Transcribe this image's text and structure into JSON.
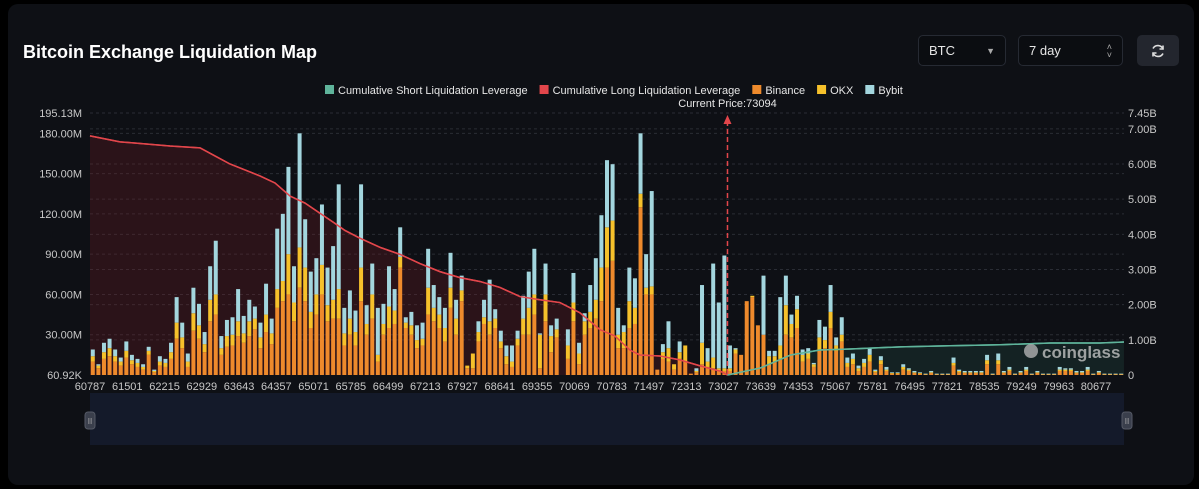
{
  "header": {
    "title": "Bitcoin Exchange Liquidation Map",
    "coin_select": "BTC",
    "period_select": "7 day",
    "refresh_icon": "refresh-icon"
  },
  "colors": {
    "binance": "#ee8a2c",
    "okx": "#f6c12b",
    "bybit": "#a3d6de",
    "long_line": "#e2464b",
    "short_line": "#5fb49b"
  },
  "chart_data": {
    "type": "bar",
    "legend": [
      "Cumulative Short Liquidation Leverage",
      "Cumulative Long Liquidation Leverage",
      "Binance",
      "OKX",
      "Bybit"
    ],
    "legend_placement": "top",
    "current_price_label": "Current Price:73094",
    "current_price": 73094,
    "watermark": "coinglass",
    "left_axis": {
      "ticks": [
        "60.92K",
        "30.00M",
        "60.00M",
        "90.00M",
        "120.00M",
        "150.00M",
        "180.00M",
        "195.13M"
      ],
      "values": [
        0.06092,
        30,
        60,
        90,
        120,
        150,
        180,
        195.13
      ],
      "unit": "M"
    },
    "right_axis": {
      "ticks": [
        "0",
        "1.00B",
        "2.00B",
        "3.00B",
        "4.00B",
        "5.00B",
        "6.00B",
        "7.00B",
        "7.45B"
      ],
      "values": [
        0,
        1,
        2,
        3,
        4,
        5,
        6,
        7,
        7.45
      ],
      "unit": "B"
    },
    "x_ticks": [
      60787,
      61501,
      62215,
      62929,
      63643,
      64357,
      65071,
      65785,
      66499,
      67213,
      67927,
      68641,
      69355,
      70069,
      70783,
      71497,
      72313,
      73027,
      73639,
      74353,
      75067,
      75781,
      76495,
      77821,
      78535,
      79249,
      79963,
      80677
    ],
    "stack_order": [
      "Binance",
      "OKX",
      "Bybit"
    ],
    "bars_millions": [
      [
        10,
        4,
        5
      ],
      [
        5,
        2,
        1
      ],
      [
        12,
        5,
        7
      ],
      [
        14,
        6,
        7
      ],
      [
        10,
        4,
        5
      ],
      [
        7,
        3,
        3
      ],
      [
        13,
        5,
        7
      ],
      [
        8,
        3,
        4
      ],
      [
        6,
        3,
        3
      ],
      [
        4,
        2,
        2
      ],
      [
        15,
        3,
        3
      ],
      [
        2,
        1,
        1
      ],
      [
        7,
        3,
        4
      ],
      [
        6,
        3,
        3
      ],
      [
        12,
        5,
        7
      ],
      [
        27,
        12,
        19
      ],
      [
        20,
        8,
        11
      ],
      [
        6,
        4,
        6
      ],
      [
        33,
        13,
        19
      ],
      [
        27,
        10,
        16
      ],
      [
        17,
        6,
        9
      ],
      [
        40,
        16,
        25
      ],
      [
        45,
        15,
        40
      ],
      [
        15,
        5,
        9
      ],
      [
        21,
        8,
        12
      ],
      [
        22,
        8,
        13
      ],
      [
        29,
        11,
        24
      ],
      [
        24,
        7,
        13
      ],
      [
        29,
        11,
        16
      ],
      [
        34,
        8,
        9
      ],
      [
        20,
        8,
        11
      ],
      [
        32,
        13,
        23
      ],
      [
        23,
        8,
        11
      ],
      [
        50,
        14,
        45
      ],
      [
        55,
        15,
        50
      ],
      [
        60,
        30,
        65
      ],
      [
        40,
        14,
        27
      ],
      [
        65,
        30,
        85
      ],
      [
        55,
        25,
        36
      ],
      [
        35,
        12,
        30
      ],
      [
        45,
        15,
        27
      ],
      [
        60,
        22,
        45
      ],
      [
        40,
        12,
        28
      ],
      [
        42,
        14,
        40
      ],
      [
        42,
        22,
        78
      ],
      [
        22,
        9,
        19
      ],
      [
        30,
        12,
        21
      ],
      [
        22,
        10,
        16
      ],
      [
        55,
        25,
        62
      ],
      [
        30,
        8,
        14
      ],
      [
        42,
        18,
        23
      ],
      [
        10,
        5,
        35
      ],
      [
        30,
        8,
        15
      ],
      [
        35,
        16,
        30
      ],
      [
        38,
        10,
        16
      ],
      [
        80,
        8,
        22
      ],
      [
        35,
        4,
        4
      ],
      [
        30,
        7,
        10
      ],
      [
        20,
        6,
        11
      ],
      [
        22,
        5,
        12
      ],
      [
        45,
        20,
        29
      ],
      [
        40,
        10,
        17
      ],
      [
        35,
        10,
        13
      ],
      [
        25,
        10,
        15
      ],
      [
        50,
        15,
        26
      ],
      [
        30,
        12,
        14
      ],
      [
        55,
        8,
        11
      ],
      [
        5,
        2,
        0
      ],
      [
        5,
        11,
        0
      ],
      [
        25,
        7,
        8
      ],
      [
        38,
        5,
        13
      ],
      [
        30,
        10,
        31
      ],
      [
        35,
        7,
        7
      ],
      [
        20,
        5,
        8
      ],
      [
        8,
        6,
        8
      ],
      [
        6,
        4,
        12
      ],
      [
        22,
        5,
        6
      ],
      [
        30,
        12,
        17
      ],
      [
        30,
        20,
        27
      ],
      [
        45,
        15,
        34
      ],
      [
        5,
        25,
        1
      ],
      [
        40,
        20,
        23
      ],
      [
        17,
        12,
        8
      ],
      [
        28,
        6,
        8
      ],
      [
        0,
        0,
        0
      ],
      [
        12,
        10,
        12
      ],
      [
        40,
        14,
        22
      ],
      [
        8,
        8,
        8
      ],
      [
        30,
        10,
        6
      ],
      [
        35,
        12,
        20
      ],
      [
        42,
        14,
        31
      ],
      [
        55,
        25,
        39
      ],
      [
        80,
        30,
        50
      ],
      [
        85,
        30,
        42
      ],
      [
        20,
        10,
        20
      ],
      [
        20,
        12,
        5
      ],
      [
        35,
        20,
        25
      ],
      [
        38,
        12,
        22
      ],
      [
        125,
        10,
        45
      ],
      [
        60,
        5,
        25
      ],
      [
        60,
        6,
        71
      ],
      [
        4,
        0,
        0
      ],
      [
        12,
        5,
        6
      ],
      [
        10,
        10,
        20
      ],
      [
        4,
        4,
        0
      ],
      [
        12,
        5,
        8
      ],
      [
        10,
        12,
        0
      ],
      [
        1,
        0,
        0
      ],
      [
        2,
        1,
        2
      ],
      [
        8,
        16,
        43
      ],
      [
        6,
        4,
        10
      ],
      [
        5,
        8,
        70
      ],
      [
        3,
        2,
        49
      ],
      [
        3,
        2,
        84
      ],
      [
        3,
        2,
        17
      ],
      [
        16,
        3,
        1
      ],
      [
        15,
        0,
        0
      ],
      [
        55,
        0,
        0
      ],
      [
        58,
        1,
        0
      ],
      [
        37,
        0,
        0
      ],
      [
        30,
        0,
        44
      ],
      [
        8,
        6,
        4
      ],
      [
        10,
        4,
        4
      ],
      [
        12,
        10,
        36
      ],
      [
        30,
        22,
        22
      ],
      [
        28,
        10,
        7
      ],
      [
        35,
        14,
        10
      ],
      [
        10,
        5,
        4
      ],
      [
        12,
        4,
        4
      ],
      [
        6,
        2,
        1
      ],
      [
        18,
        10,
        13
      ],
      [
        20,
        6,
        10
      ],
      [
        35,
        12,
        20
      ],
      [
        18,
        4,
        6
      ],
      [
        25,
        5,
        13
      ],
      [
        6,
        3,
        4
      ],
      [
        8,
        4,
        4
      ],
      [
        3,
        2,
        2
      ],
      [
        6,
        3,
        3
      ],
      [
        10,
        5,
        5
      ],
      [
        2,
        1,
        1
      ],
      [
        8,
        3,
        3
      ],
      [
        3,
        1,
        2
      ],
      [
        1,
        0.5,
        0.5
      ],
      [
        1,
        0.5,
        0.5
      ],
      [
        4,
        2,
        2
      ],
      [
        3,
        1,
        1
      ],
      [
        1.5,
        0.5,
        1
      ],
      [
        1,
        0.5,
        0.5
      ],
      [
        0.6,
        0.2,
        0.2
      ],
      [
        1.5,
        0.5,
        1
      ],
      [
        0.6,
        0.2,
        0.2
      ],
      [
        0.6,
        0.2,
        0.2
      ],
      [
        0.6,
        0.2,
        0.2
      ],
      [
        7,
        2,
        4
      ],
      [
        2,
        1,
        1
      ],
      [
        1.5,
        0.5,
        1
      ],
      [
        1.5,
        0.5,
        1
      ],
      [
        1.5,
        0.5,
        1
      ],
      [
        1.5,
        0.5,
        1
      ],
      [
        8,
        3,
        4
      ],
      [
        0.6,
        0.2,
        0.2
      ],
      [
        8,
        3,
        5
      ],
      [
        1.5,
        0.5,
        1
      ],
      [
        3,
        1,
        2
      ],
      [
        0.6,
        0.2,
        0.2
      ],
      [
        1.5,
        0.5,
        1
      ],
      [
        3,
        1,
        2
      ],
      [
        0.6,
        0.2,
        0.2
      ],
      [
        1.5,
        0.5,
        1
      ],
      [
        0.6,
        0.2,
        0.2
      ],
      [
        0.6,
        0.2,
        0.2
      ],
      [
        0.6,
        0.2,
        0.2
      ],
      [
        3,
        1,
        2
      ],
      [
        3,
        1,
        1
      ],
      [
        3,
        1,
        1
      ],
      [
        1.5,
        0.5,
        1
      ],
      [
        1.5,
        0.5,
        1
      ],
      [
        3,
        1,
        2
      ],
      [
        0.6,
        0.2,
        0.2
      ],
      [
        1.5,
        0.5,
        1
      ],
      [
        0.6,
        0.2,
        0.2
      ],
      [
        0.6,
        0.2,
        0.2
      ],
      [
        0.6,
        0.2,
        0.2
      ],
      [
        0.6,
        0.2,
        0.2
      ]
    ],
    "long_cumulative_billions": [
      [
        60787,
        6.8
      ],
      [
        61362,
        6.63
      ],
      [
        62320,
        6.51
      ],
      [
        62895,
        6.46
      ],
      [
        63182,
        6.23
      ],
      [
        63469,
        6.0
      ],
      [
        63757,
        5.83
      ],
      [
        64044,
        5.66
      ],
      [
        64332,
        5.46
      ],
      [
        64619,
        5.09
      ],
      [
        64906,
        4.89
      ],
      [
        65194,
        4.6
      ],
      [
        65481,
        4.31
      ],
      [
        65673,
        4.11
      ],
      [
        65960,
        3.89
      ],
      [
        66343,
        3.63
      ],
      [
        66727,
        3.43
      ],
      [
        67110,
        3.17
      ],
      [
        67493,
        2.94
      ],
      [
        67876,
        2.77
      ],
      [
        68259,
        2.66
      ],
      [
        68643,
        2.49
      ],
      [
        69026,
        2.23
      ],
      [
        69409,
        2.14
      ],
      [
        69792,
        2.06
      ],
      [
        70175,
        1.77
      ],
      [
        70559,
        1.29
      ],
      [
        70846,
        1.11
      ],
      [
        71133,
        0.71
      ],
      [
        71325,
        0.57
      ],
      [
        71738,
        0.54
      ],
      [
        72176,
        0.43
      ],
      [
        72581,
        0.26
      ],
      [
        72964,
        0.11
      ],
      [
        73094,
        0
      ]
    ],
    "short_cumulative_billions": [
      [
        73094,
        0
      ],
      [
        73634,
        0.2
      ],
      [
        74214,
        0.57
      ],
      [
        74775,
        0.71
      ],
      [
        75354,
        0.74
      ],
      [
        76317,
        0.8
      ],
      [
        77878,
        0.83
      ],
      [
        78842,
        0.86
      ],
      [
        79805,
        0.91
      ],
      [
        80754,
        0.91
      ],
      [
        81213,
        0.94
      ]
    ]
  }
}
